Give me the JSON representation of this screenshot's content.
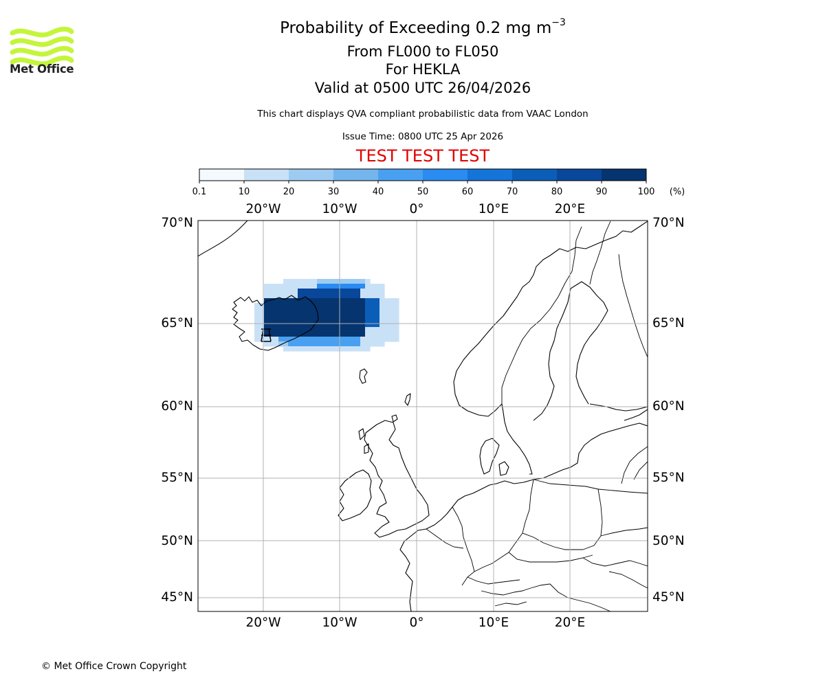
{
  "logo": {
    "name": "Met Office"
  },
  "titles": {
    "main": "Probability of Exceeding 0.2 mg m",
    "main_sup": "−3",
    "levels": "From FL000 to FL050",
    "volcano": "For HEKLA",
    "valid": "Valid at 0500 UTC 26/04/2026",
    "note": "This chart displays QVA compliant probabilistic data from VAAC London",
    "issue": "Issue Time: 0800 UTC 25 Apr 2026",
    "test": "TEST TEST TEST"
  },
  "colorbar": {
    "ticks": [
      "0.1",
      "10",
      "20",
      "30",
      "40",
      "50",
      "60",
      "70",
      "80",
      "90",
      "100"
    ],
    "unit": "(%)",
    "colors": [
      "#f4f9fe",
      "#c9e1f7",
      "#9ecbf1",
      "#74b5ee",
      "#4aa0f0",
      "#2a8bf0",
      "#1574d8",
      "#0b5eb8",
      "#08479a",
      "#06346f",
      "#03254d"
    ]
  },
  "map": {
    "lon_labels": [
      "20°W",
      "10°W",
      "0°",
      "10°E",
      "20°E"
    ],
    "lat_labels": [
      "70°N",
      "65°N",
      "60°N",
      "55°N",
      "50°N",
      "45°N"
    ],
    "volcano_marker": "hekla-symbol",
    "plume_color_max": "#03254d"
  },
  "footer": {
    "copyright": "© Met Office Crown Copyright"
  }
}
